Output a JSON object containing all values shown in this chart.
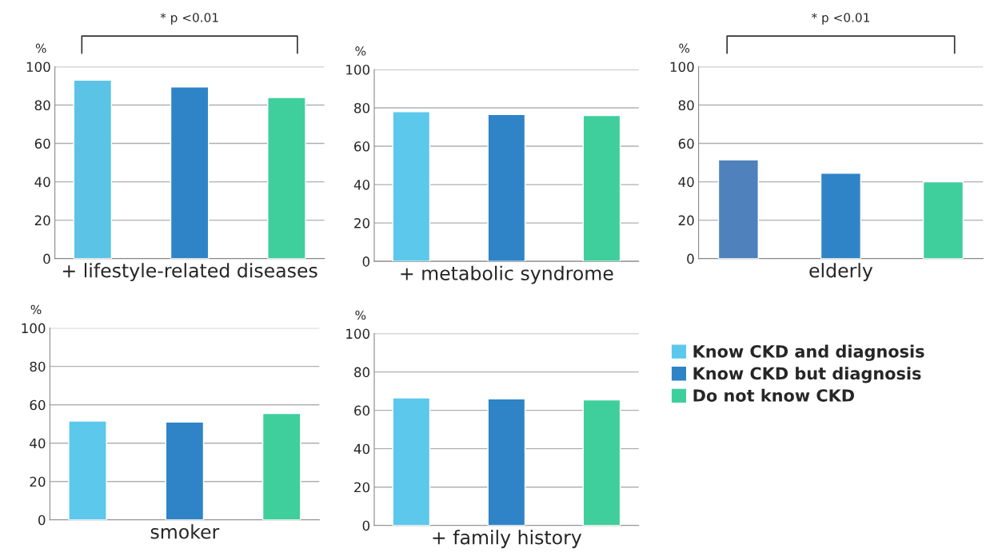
{
  "chart_data": [
    {
      "type": "bar",
      "xlabel": "+ lifestyle-related diseases",
      "ylabel": "%",
      "categories": [
        null
      ],
      "annotations": [
        "* p <0.01"
      ],
      "ylim": [
        0,
        100
      ],
      "yticks": [
        0,
        20,
        40,
        60,
        80,
        100
      ],
      "grid": "y",
      "tick_labels": "y",
      "legend": false,
      "series": [
        {
          "color": "#5bc4e6",
          "values": [
            93
          ]
        },
        {
          "color": "#2e84c6",
          "values": [
            89.5
          ]
        },
        {
          "color": "#3ecf9c",
          "values": [
            84
          ]
        }
      ]
    },
    {
      "type": "bar",
      "xlabel": "+ metabolic syndrome",
      "ylabel": "%",
      "categories": [
        null
      ],
      "ylim": [
        0,
        100
      ],
      "yticks": [
        0,
        20,
        40,
        60,
        80,
        100
      ],
      "grid": "y",
      "tick_labels": "y",
      "legend": false,
      "series": [
        {
          "color": "#5bc8ec",
          "values": [
            78
          ]
        },
        {
          "color": "#2e84c6",
          "values": [
            76.5
          ]
        },
        {
          "color": "#3ecf9c",
          "values": [
            76
          ]
        }
      ]
    },
    {
      "type": "bar",
      "xlabel": "elderly",
      "ylabel": "%",
      "categories": [
        null
      ],
      "annotations": [
        "* p <0.01"
      ],
      "ylim": [
        0,
        100
      ],
      "yticks": [
        0,
        20,
        40,
        60,
        80,
        100
      ],
      "grid": "y",
      "tick_labels": "y",
      "legend": false,
      "series": [
        {
          "color": "#4f81bd",
          "values": [
            51.5
          ]
        },
        {
          "color": "#2e84c6",
          "values": [
            44.5
          ]
        },
        {
          "color": "#3ecf9c",
          "values": [
            40
          ]
        }
      ]
    },
    {
      "type": "bar",
      "xlabel": "smoker",
      "ylabel": "%",
      "categories": [
        null
      ],
      "ylim": [
        0,
        100
      ],
      "yticks": [
        0,
        20,
        40,
        60,
        80,
        100
      ],
      "grid": "y",
      "tick_labels": "y",
      "legend": false,
      "series": [
        {
          "color": "#5bc8ec",
          "values": [
            51.5
          ]
        },
        {
          "color": "#2e84c6",
          "values": [
            51
          ]
        },
        {
          "color": "#3ecf9c",
          "values": [
            55.5
          ]
        }
      ]
    },
    {
      "type": "bar",
      "xlabel": "+ family history",
      "ylabel": "%",
      "categories": [
        null
      ],
      "ylim": [
        0,
        100
      ],
      "yticks": [
        0,
        20,
        40,
        60,
        80,
        100
      ],
      "grid": "y",
      "tick_labels": "y",
      "legend": "right",
      "series": [
        {
          "name": "Know CKD and diagnosis",
          "color": "#5bc8ec",
          "values": [
            66.5
          ]
        },
        {
          "name": "Know CKD but diagnosis",
          "color": "#2e84c6",
          "values": [
            66
          ]
        },
        {
          "name": "Do not know CKD",
          "color": "#3ecf9c",
          "values": [
            65.5
          ]
        }
      ]
    }
  ]
}
